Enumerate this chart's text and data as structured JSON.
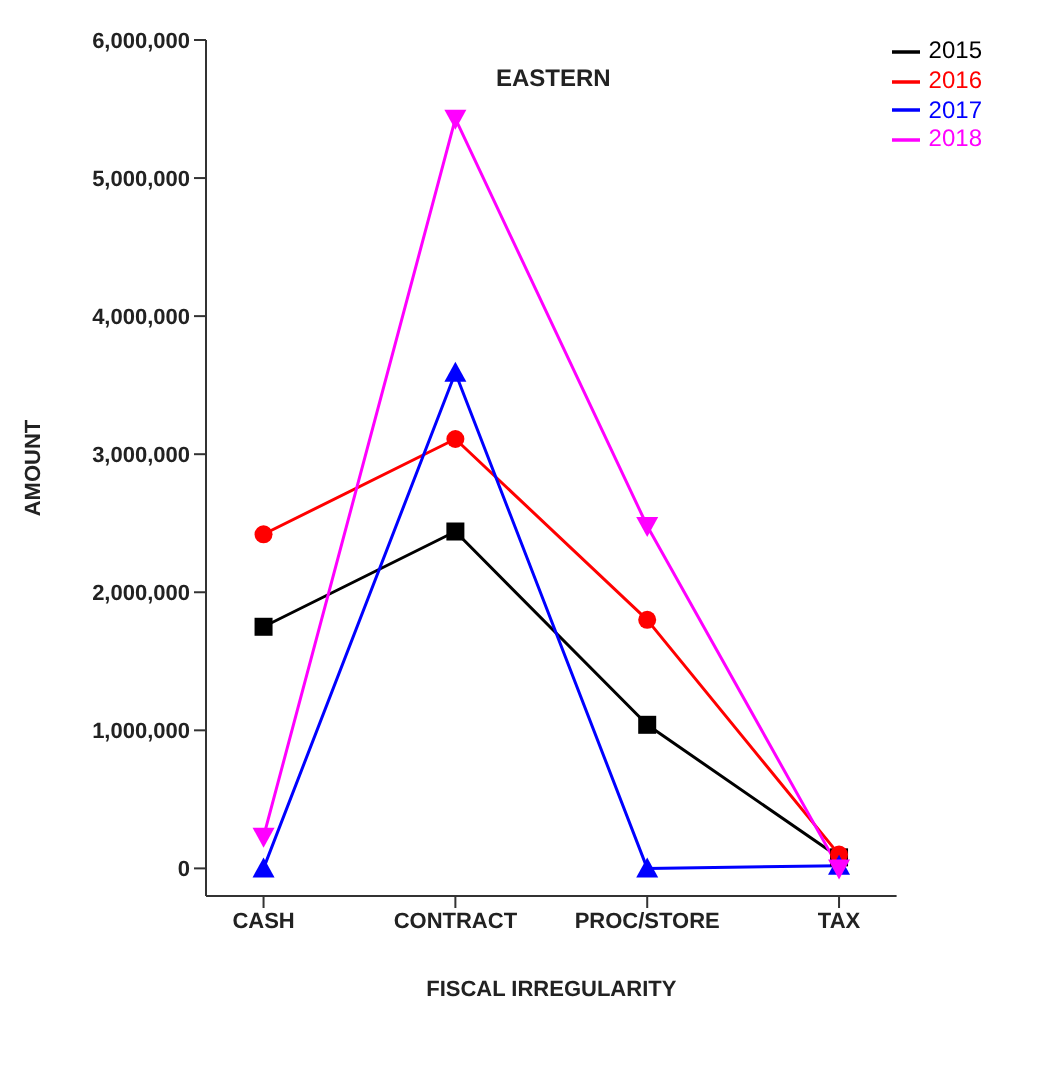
{
  "chart_data": {
    "type": "line",
    "title": "EASTERN",
    "xlabel": "FISCAL IRREGULARITY",
    "ylabel": "AMOUNT",
    "categories": [
      "CASH",
      "CONTRACT",
      "PROC/STORE",
      "TAX"
    ],
    "series": [
      {
        "name": "2015",
        "color": "#000000",
        "marker": "square",
        "values": [
          1750000,
          2440000,
          1040000,
          80000
        ]
      },
      {
        "name": "2016",
        "color": "#ff0000",
        "marker": "circle",
        "values": [
          2420000,
          3110000,
          1800000,
          100000
        ]
      },
      {
        "name": "2017",
        "color": "#0000ff",
        "marker": "triangle",
        "values": [
          0,
          3590000,
          0,
          20000
        ]
      },
      {
        "name": "2018",
        "color": "#ff00ff",
        "marker": "triangle-down",
        "values": [
          230000,
          5430000,
          2480000,
          0
        ]
      }
    ],
    "ylim": [
      -200000,
      6000000
    ],
    "yticks": [
      0,
      {
        "value": 1000000,
        "label": "1,000,000"
      },
      {
        "value": 2000000,
        "label": "2,000,000"
      },
      {
        "value": 3000000,
        "label": "3,000,000"
      },
      {
        "value": 4000000,
        "label": "4,000,000"
      },
      {
        "value": 5000000,
        "label": "5,000,000"
      },
      {
        "value": 6000000,
        "label": "6,000,000"
      }
    ],
    "grid": false,
    "legend": "top right",
    "line_style": "solid"
  }
}
